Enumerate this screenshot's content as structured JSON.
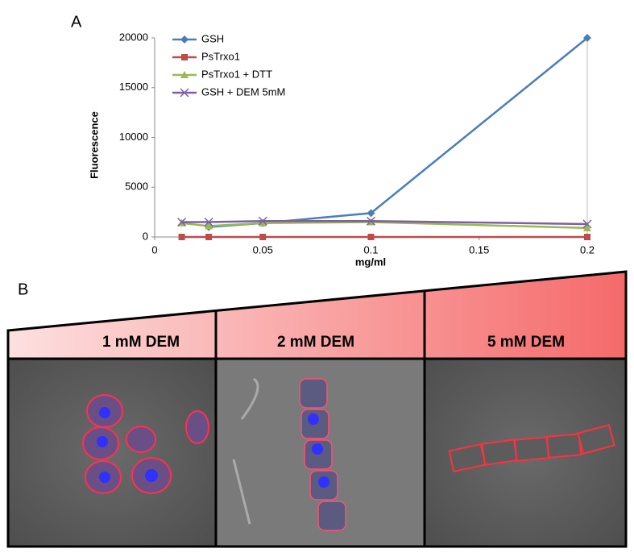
{
  "panel_a": {
    "label": "A"
  },
  "chart_data": {
    "type": "line",
    "x_label": "mg/ml",
    "y_label": "Fluorescence",
    "xlim": [
      0,
      0.2
    ],
    "xticks": [
      0,
      0.05,
      0.1,
      0.15,
      0.2
    ],
    "ylim": [
      0,
      20000
    ],
    "yticks": [
      0,
      5000,
      10000,
      15000,
      20000
    ],
    "grid": false,
    "legend": "top-left",
    "series": [
      {
        "name": "GSH",
        "color": "#4a7ebb",
        "marker": "diamond",
        "x": [
          0.025,
          0.05,
          0.1,
          0.2
        ],
        "values": [
          1000,
          1400,
          2400,
          20000
        ]
      },
      {
        "name": "PsTrxo1",
        "color": "#be4b48",
        "marker": "square",
        "x": [
          0.0125,
          0.025,
          0.05,
          0.1,
          0.2
        ],
        "values": [
          0,
          0,
          0,
          0,
          0
        ]
      },
      {
        "name": "PsTrxo1 + DTT",
        "color": "#98b954",
        "marker": "triangle",
        "x": [
          0.0125,
          0.025,
          0.05,
          0.1,
          0.2
        ],
        "values": [
          1400,
          1100,
          1400,
          1500,
          900
        ]
      },
      {
        "name": "GSH + DEM 5mM",
        "color": "#7d60a0",
        "marker": "x",
        "x": [
          0.0125,
          0.025,
          0.05,
          0.1,
          0.2
        ],
        "values": [
          1500,
          1500,
          1600,
          1600,
          1300
        ]
      }
    ]
  },
  "panel_b": {
    "label": "B",
    "conditions": [
      "1 mM DEM",
      "2 mM DEM",
      "5 mM DEM"
    ]
  }
}
